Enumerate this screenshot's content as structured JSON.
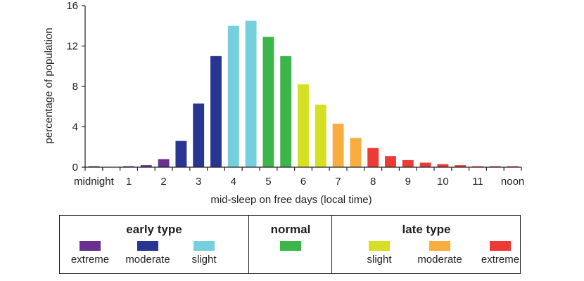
{
  "chart_data": {
    "type": "bar",
    "ylabel": "percentage of population",
    "xlabel": "mid-sleep on free days (local time)",
    "ylim": [
      0,
      16
    ],
    "yticks": [
      "0",
      "4",
      "8",
      "12",
      "16"
    ],
    "xtick_labels": [
      "midnight",
      "1",
      "2",
      "3",
      "4",
      "5",
      "6",
      "7",
      "8",
      "9",
      "10",
      "11",
      "noon"
    ],
    "bins": 25,
    "bars": [
      {
        "index": 0,
        "value": 0.1,
        "color": "#6a2f91"
      },
      {
        "index": 2,
        "value": 0.1,
        "color": "#6a2f91"
      },
      {
        "index": 3,
        "value": 0.2,
        "color": "#6a2f91"
      },
      {
        "index": 4,
        "value": 0.8,
        "color": "#6a2f91"
      },
      {
        "index": 5,
        "value": 2.6,
        "color": "#283593"
      },
      {
        "index": 6,
        "value": 6.3,
        "color": "#283593"
      },
      {
        "index": 7,
        "value": 11.0,
        "color": "#283593"
      },
      {
        "index": 8,
        "value": 14.0,
        "color": "#75cfdf"
      },
      {
        "index": 9,
        "value": 14.5,
        "color": "#75cfdf"
      },
      {
        "index": 10,
        "value": 12.9,
        "color": "#3cb54a"
      },
      {
        "index": 11,
        "value": 11.0,
        "color": "#3cb54a"
      },
      {
        "index": 12,
        "value": 8.2,
        "color": "#d4e021"
      },
      {
        "index": 13,
        "value": 6.2,
        "color": "#d4e021"
      },
      {
        "index": 14,
        "value": 4.3,
        "color": "#f9ad3e"
      },
      {
        "index": 15,
        "value": 2.9,
        "color": "#f9ad3e"
      },
      {
        "index": 16,
        "value": 1.9,
        "color": "#ec3b34"
      },
      {
        "index": 17,
        "value": 1.1,
        "color": "#ec3b34"
      },
      {
        "index": 18,
        "value": 0.7,
        "color": "#ec3b34"
      },
      {
        "index": 19,
        "value": 0.45,
        "color": "#ec3b34"
      },
      {
        "index": 20,
        "value": 0.3,
        "color": "#ec3b34"
      },
      {
        "index": 21,
        "value": 0.2,
        "color": "#ec3b34"
      },
      {
        "index": 22,
        "value": 0.1,
        "color": "#ec3b34"
      },
      {
        "index": 23,
        "value": 0.1,
        "color": "#ec3b34"
      },
      {
        "index": 24,
        "value": 0.1,
        "color": "#ec3b34"
      }
    ],
    "legend": [
      {
        "title": "early type",
        "items": [
          {
            "label": "extreme",
            "color": "#6a2f91"
          },
          {
            "label": "moderate",
            "color": "#283593"
          },
          {
            "label": "slight",
            "color": "#75cfdf"
          }
        ]
      },
      {
        "title": "normal",
        "items": [
          {
            "label": "",
            "color": "#3cb54a"
          }
        ]
      },
      {
        "title": "late type",
        "items": [
          {
            "label": "slight",
            "color": "#d4e021"
          },
          {
            "label": "moderate",
            "color": "#f9ad3e"
          },
          {
            "label": "extreme",
            "color": "#ec3b34"
          }
        ]
      }
    ]
  }
}
